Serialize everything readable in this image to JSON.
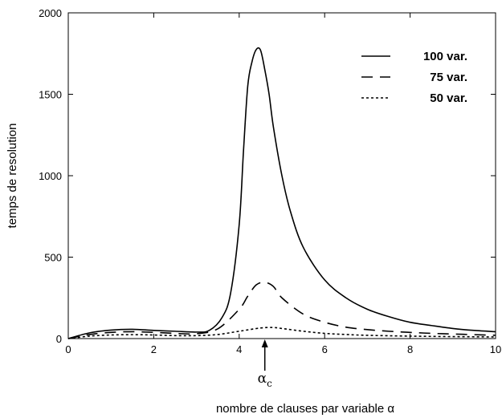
{
  "chart_data": {
    "type": "line",
    "xlabel": "nombre de clauses par variable  α",
    "ylabel": "temps de resolution",
    "xlim": [
      0,
      10
    ],
    "ylim": [
      0,
      2000
    ],
    "xticks": [
      "0",
      "2",
      "4",
      "6",
      "8",
      "10"
    ],
    "yticks": [
      "0",
      "500",
      "1000",
      "1500",
      "2000"
    ],
    "grid": false,
    "legend_position": "top-right",
    "annotation": {
      "text": "α",
      "subscript": "c",
      "x": 4.6
    },
    "series": [
      {
        "name": "100 var.",
        "style": "solid",
        "x": [
          0,
          0.5,
          1,
          1.5,
          2,
          2.5,
          3,
          3.3,
          3.6,
          3.8,
          4,
          4.1,
          4.2,
          4.3,
          4.4,
          4.5,
          4.6,
          4.7,
          4.8,
          5,
          5.2,
          5.5,
          6,
          6.5,
          7,
          7.5,
          8,
          8.5,
          9,
          9.5,
          10
        ],
        "y": [
          0,
          35,
          52,
          57,
          50,
          45,
          40,
          50,
          130,
          280,
          700,
          1150,
          1550,
          1700,
          1775,
          1770,
          1650,
          1500,
          1300,
          1000,
          780,
          560,
          360,
          250,
          180,
          135,
          100,
          80,
          62,
          50,
          42
        ]
      },
      {
        "name": "75 var.",
        "style": "dashed",
        "x": [
          0,
          0.5,
          1,
          1.5,
          2,
          2.5,
          3,
          3.5,
          4,
          4.2,
          4.4,
          4.6,
          4.8,
          5,
          5.5,
          6,
          6.5,
          7,
          7.5,
          8,
          8.5,
          9,
          9.5,
          10
        ],
        "y": [
          0,
          25,
          38,
          42,
          38,
          32,
          30,
          60,
          180,
          260,
          330,
          345,
          320,
          250,
          150,
          100,
          70,
          55,
          45,
          38,
          32,
          28,
          24,
          20
        ]
      },
      {
        "name": "50 var.",
        "style": "dotted",
        "x": [
          0,
          0.5,
          1,
          1.5,
          2,
          2.5,
          3,
          3.5,
          4,
          4.5,
          4.8,
          5,
          5.5,
          6,
          6.5,
          7,
          8,
          9,
          10
        ],
        "y": [
          0,
          15,
          22,
          24,
          22,
          18,
          18,
          25,
          45,
          65,
          68,
          62,
          45,
          32,
          25,
          20,
          15,
          12,
          10
        ]
      }
    ]
  }
}
